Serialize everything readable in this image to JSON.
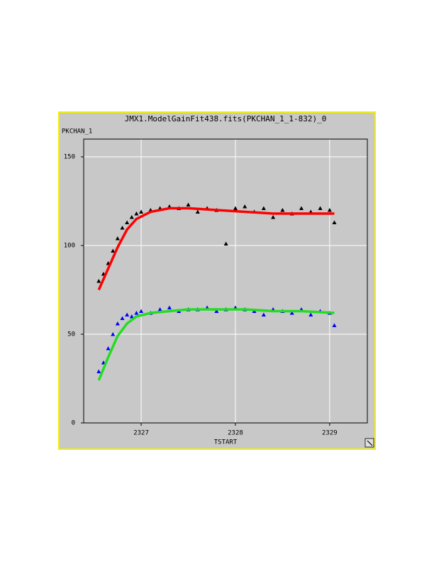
{
  "chart_data": {
    "type": "scatter",
    "title": "JMX1.ModelGainFit438.fits(PKCHAN_1_1-832)_0",
    "y_label": "PKCHAN_1",
    "x_label": "TSTART",
    "xlim": [
      2326.39,
      2329.4
    ],
    "xticks": [
      2327,
      2328,
      2329
    ],
    "ylim": [
      0,
      160
    ],
    "yticks": [
      0,
      50,
      100,
      150
    ],
    "grid": true,
    "series": [
      {
        "color": "#000000",
        "style": "markers",
        "x": [
          2326.55,
          2326.6,
          2326.65,
          2326.7,
          2326.75,
          2326.8,
          2326.85,
          2326.9,
          2326.95,
          2327.0,
          2327.1,
          2327.2,
          2327.3,
          2327.4,
          2327.5,
          2327.6,
          2327.7,
          2327.8,
          2327.9,
          2328.0,
          2328.1,
          2328.2,
          2328.3,
          2328.4,
          2328.5,
          2328.6,
          2328.7,
          2328.8,
          2328.9,
          2329.0,
          2329.05
        ],
        "values": [
          80,
          84,
          90,
          97,
          104,
          110,
          113,
          116,
          118,
          119,
          120,
          121,
          122,
          121,
          123,
          119,
          121,
          120,
          101,
          121,
          122,
          119,
          121,
          116,
          120,
          118,
          121,
          119,
          121,
          120,
          113
        ]
      },
      {
        "color": "#0000ff",
        "style": "markers",
        "x": [
          2326.55,
          2326.6,
          2326.65,
          2326.7,
          2326.75,
          2326.8,
          2326.85,
          2326.9,
          2326.95,
          2327.0,
          2327.1,
          2327.2,
          2327.3,
          2327.4,
          2327.5,
          2327.6,
          2327.7,
          2327.8,
          2327.9,
          2328.0,
          2328.1,
          2328.2,
          2328.3,
          2328.4,
          2328.5,
          2328.6,
          2328.7,
          2328.8,
          2328.9,
          2329.0,
          2329.05
        ],
        "values": [
          29,
          34,
          42,
          50,
          56,
          59,
          61,
          60,
          62,
          63,
          62,
          64,
          65,
          63,
          64,
          64,
          65,
          63,
          64,
          65,
          64,
          63,
          61,
          64,
          63,
          62,
          64,
          61,
          63,
          62,
          55
        ]
      },
      {
        "color": "#ff0000",
        "style": "line",
        "x": [
          2326.55,
          2326.65,
          2326.75,
          2326.85,
          2326.95,
          2327.1,
          2327.3,
          2327.5,
          2327.8,
          2328.1,
          2328.4,
          2328.7,
          2329.05
        ],
        "values": [
          75,
          87,
          99,
          109,
          115,
          119,
          121,
          121,
          120,
          119,
          118,
          118,
          118
        ]
      },
      {
        "color": "#22dd22",
        "style": "line",
        "x": [
          2326.55,
          2326.65,
          2326.75,
          2326.85,
          2326.95,
          2327.1,
          2327.3,
          2327.5,
          2327.8,
          2328.1,
          2328.4,
          2328.7,
          2329.05
        ],
        "values": [
          24,
          37,
          49,
          56,
          60,
          62,
          63,
          64,
          64,
          64,
          63,
          63,
          62
        ]
      }
    ]
  }
}
